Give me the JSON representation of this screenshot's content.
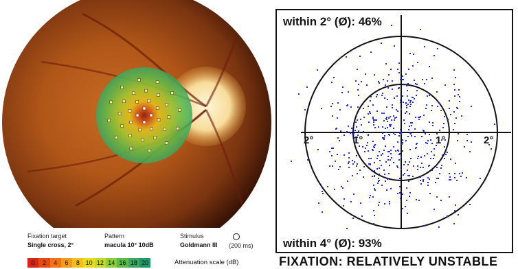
{
  "microperimetry": {
    "fixation_target_label": "Fixation target",
    "fixation_target_value": "Single cross, 2°",
    "pattern_label": "Pattern",
    "pattern_value": "macula 10° 10dB",
    "stimulus_label": "Stimulus",
    "stimulus_value": "Goldmann III",
    "stimulus_duration": "(200 ms)",
    "attenuation_scale_title": "Attenuation scale (dB)",
    "attenuation_scale": [
      {
        "label": "0",
        "color": "#d62418"
      },
      {
        "label": "2",
        "color": "#e64a14"
      },
      {
        "label": "4",
        "color": "#f07416"
      },
      {
        "label": "6",
        "color": "#f29a1a"
      },
      {
        "label": "8",
        "color": "#f2c01a"
      },
      {
        "label": "10",
        "color": "#e8dc1a"
      },
      {
        "label": "12",
        "color": "#c4d824"
      },
      {
        "label": "14",
        "color": "#8ccd38"
      },
      {
        "label": "16",
        "color": "#58bb48"
      },
      {
        "label": "18",
        "color": "#3aa860"
      },
      {
        "label": "20",
        "color": "#1e9a6a"
      }
    ]
  },
  "fixation_plot": {
    "within_2deg": "within 2° (Ø): 46%",
    "within_4deg": "within 4° (Ø): 93%",
    "status": "FIXATION: RELATIVELY UNSTABLE",
    "axis_ticks": [
      "2°",
      "1°",
      "1°",
      "2°"
    ],
    "dot_color": "#1f2ee8"
  }
}
